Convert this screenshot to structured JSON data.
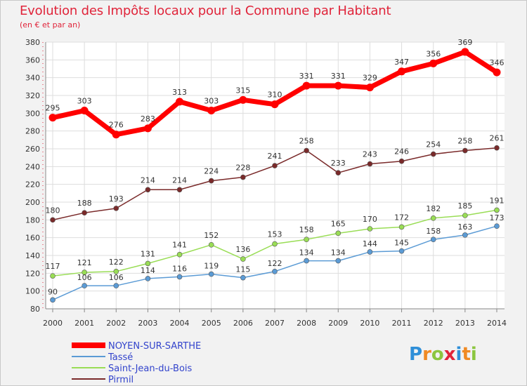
{
  "title": "Evolution des Impôts locaux pour la Commune par Habitant",
  "subtitle": "(en € et par an)",
  "logo": {
    "letters": [
      "P",
      "r",
      "o",
      "x",
      "i",
      "t",
      "i"
    ],
    "colors": [
      "#2f8fd8",
      "#f08a24",
      "#8cc63f",
      "#e0243a",
      "#2f8fd8",
      "#f08a24",
      "#8cc63f"
    ]
  },
  "chart_data": {
    "type": "line",
    "x": [
      2000,
      2001,
      2002,
      2003,
      2004,
      2005,
      2006,
      2007,
      2008,
      2009,
      2010,
      2011,
      2012,
      2013,
      2014
    ],
    "ylim": [
      80,
      380
    ],
    "yticks": [
      80,
      100,
      120,
      140,
      160,
      180,
      200,
      220,
      240,
      260,
      280,
      300,
      320,
      340,
      360,
      380
    ],
    "grid": true,
    "legend_position": "bottom-left",
    "series": [
      {
        "name": "NOYEN-SUR-SARTHE",
        "color": "#ff0000",
        "values": [
          295,
          303,
          276,
          283,
          313,
          303,
          315,
          310,
          331,
          331,
          329,
          347,
          356,
          369,
          346
        ]
      },
      {
        "name": "Tassé",
        "color": "#5b9bd5",
        "values": [
          90,
          106,
          106,
          114,
          116,
          119,
          115,
          122,
          134,
          134,
          144,
          145,
          158,
          163,
          173
        ]
      },
      {
        "name": "Saint-Jean-du-Bois",
        "color": "#99dd55",
        "values": [
          117,
          121,
          122,
          131,
          141,
          152,
          136,
          153,
          158,
          165,
          170,
          172,
          182,
          185,
          191
        ]
      },
      {
        "name": "Pirmil",
        "color": "#7a2a2a",
        "values": [
          180,
          188,
          193,
          214,
          214,
          224,
          228,
          241,
          258,
          233,
          243,
          246,
          254,
          258,
          261
        ]
      }
    ]
  }
}
